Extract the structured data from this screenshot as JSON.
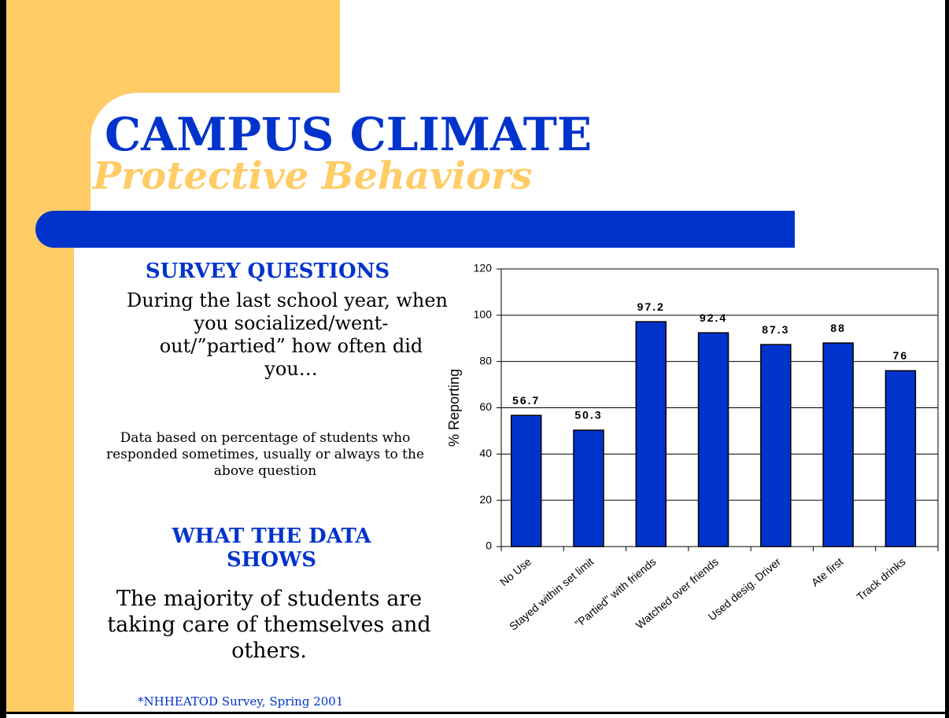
{
  "title": "CAMPUS CLIMATE",
  "subtitle": "Protective Behaviors",
  "survey_heading": "SURVEY QUESTIONS",
  "survey_question": "During the last school year, when you socialized/went-out/”partied” how often did you…",
  "data_note": "Data based on percentage of students who responded sometimes, usually or always to the above question",
  "findings_heading": "WHAT THE DATA SHOWS",
  "findings_text": "The majority of students are taking care of themselves and others.",
  "footnote": "*NHHEATOD Survey, Spring 2001",
  "chart_data": {
    "type": "bar",
    "categories": [
      "No Use",
      "Stayed within set limit",
      "\"Partied\" with friends",
      "Watched over friends",
      "Used desig. Driver",
      "Ate first",
      "Track drinks"
    ],
    "values": [
      56.7,
      50.3,
      97.2,
      92.4,
      87.3,
      88,
      76
    ],
    "color": "#0033cc",
    "y_label": "% Reporting",
    "ylim": [
      0,
      120
    ],
    "yticks": [
      0,
      20,
      40,
      60,
      80,
      100,
      120
    ],
    "grid": true
  }
}
